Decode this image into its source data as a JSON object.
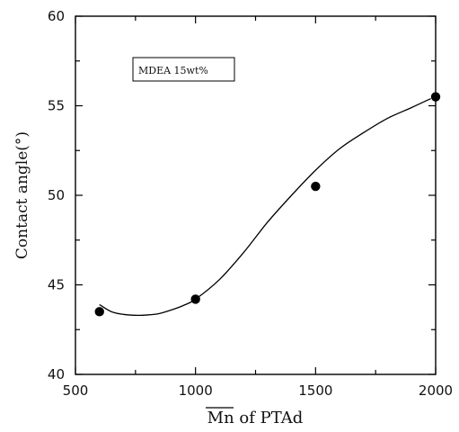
{
  "chart_data": {
    "type": "scatter",
    "xlabel": "Mn of PTAd",
    "xlabel_overline": "Mn",
    "xlabel_rest": " of PTAd",
    "ylabel": "Contact angle(°)",
    "xlim": [
      500,
      2000
    ],
    "ylim": [
      40,
      60
    ],
    "xticks": [
      500,
      1000,
      1500,
      2000
    ],
    "yticks": [
      40,
      45,
      50,
      55,
      60
    ],
    "xtick_labels": [
      "500",
      "1000",
      "1500",
      "2000"
    ],
    "ytick_labels": [
      "40",
      "45",
      "50",
      "55",
      "60"
    ],
    "series": [
      {
        "x": [
          600,
          1000,
          1500,
          2000
        ],
        "y": [
          43.5,
          44.2,
          50.5,
          55.5
        ]
      }
    ],
    "fit_curve": {
      "x": [
        600,
        650,
        700,
        750,
        800,
        850,
        900,
        950,
        1000,
        1100,
        1200,
        1300,
        1400,
        1500,
        1600,
        1700,
        1800,
        1900,
        1980
      ],
      "y": [
        43.9,
        43.5,
        43.35,
        43.3,
        43.32,
        43.4,
        43.6,
        43.85,
        44.2,
        45.3,
        46.8,
        48.5,
        50.0,
        51.4,
        52.6,
        53.5,
        54.3,
        54.9,
        55.4
      ]
    },
    "legend_box": "MDEA 15wt%",
    "grid": false,
    "marker_color": "#000000",
    "line_color": "#000000"
  }
}
